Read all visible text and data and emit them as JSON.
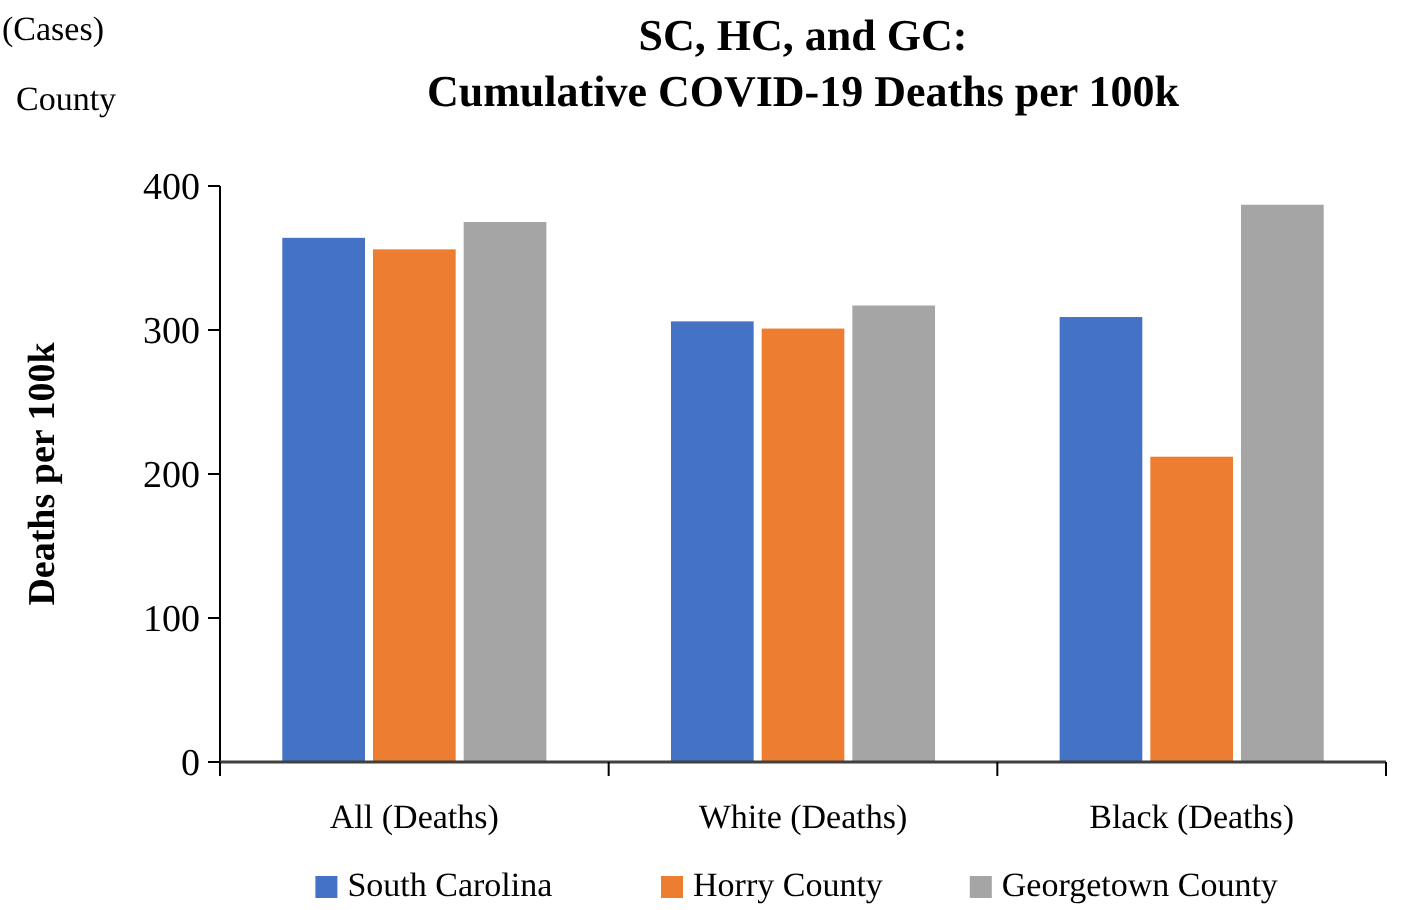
{
  "chart_data": {
    "type": "bar",
    "title": "SC, HC, and GC: Cumulative COVID-19 Deaths per 100k",
    "ylabel": "Deaths per 100k",
    "categories": [
      "All (Deaths)",
      "White (Deaths)",
      "Black (Deaths)"
    ],
    "series": [
      {
        "name": "South Carolina",
        "color": "#4472c4",
        "values": [
          364,
          306,
          309
        ]
      },
      {
        "name": "Horry County",
        "color": "#ed7d31",
        "values": [
          356,
          301,
          212
        ]
      },
      {
        "name": "Georgetown County",
        "color": "#a5a5a5",
        "values": [
          375,
          317,
          387
        ]
      }
    ],
    "ylim": [
      0,
      400
    ],
    "yticks": [
      0,
      100,
      200,
      300,
      400
    ],
    "grid": false,
    "legend": "bottom",
    "annotations": [
      "(Cases)",
      "County"
    ]
  }
}
